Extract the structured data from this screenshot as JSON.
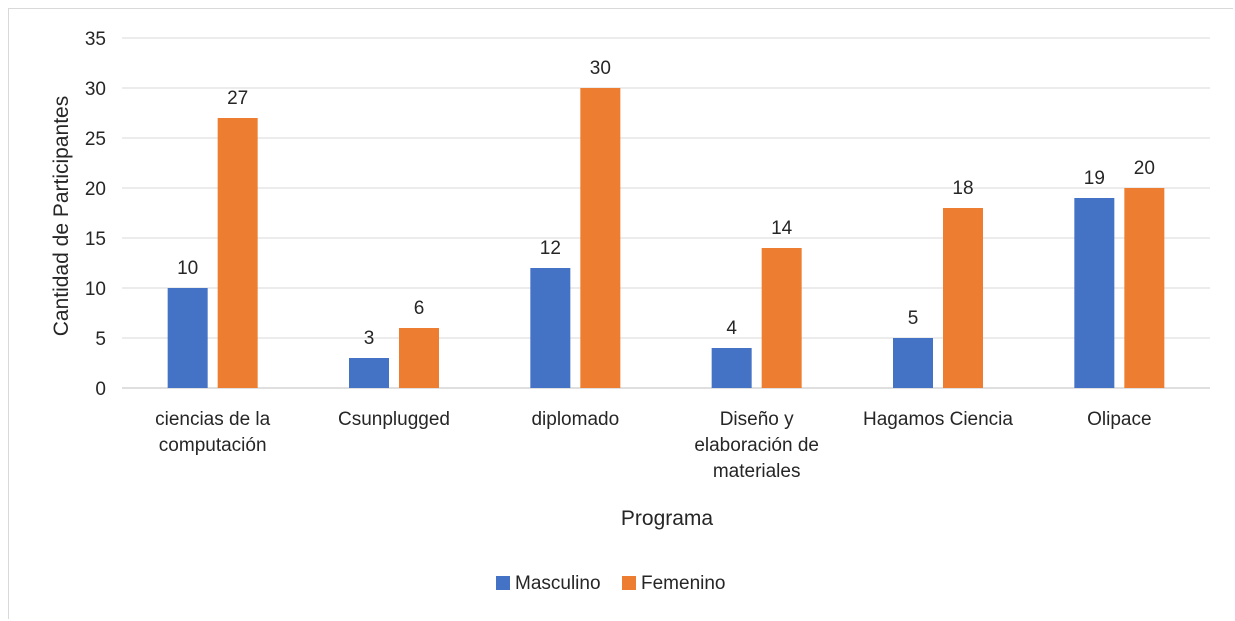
{
  "chart_data": {
    "type": "bar",
    "categories": [
      [
        "ciencias de la",
        "computación"
      ],
      [
        "Csunplugged"
      ],
      [
        "diplomado"
      ],
      [
        "Diseño y",
        "elaboración de",
        "materiales"
      ],
      [
        "Hagamos Ciencia"
      ],
      [
        "Olipace"
      ]
    ],
    "series": [
      {
        "name": "Masculino",
        "values": [
          10,
          3,
          12,
          4,
          5,
          19
        ],
        "color": "#4472c4"
      },
      {
        "name": "Femenino",
        "values": [
          27,
          6,
          30,
          14,
          18,
          20
        ],
        "color": "#ed7d31"
      }
    ],
    "xlabel": "Programa",
    "ylabel": "Cantidad de Participantes",
    "ylim": [
      0,
      35
    ],
    "yticks": [
      0,
      5,
      10,
      15,
      20,
      25,
      30,
      35
    ],
    "grid": true,
    "legend_position": "bottom",
    "data_labels": true
  }
}
